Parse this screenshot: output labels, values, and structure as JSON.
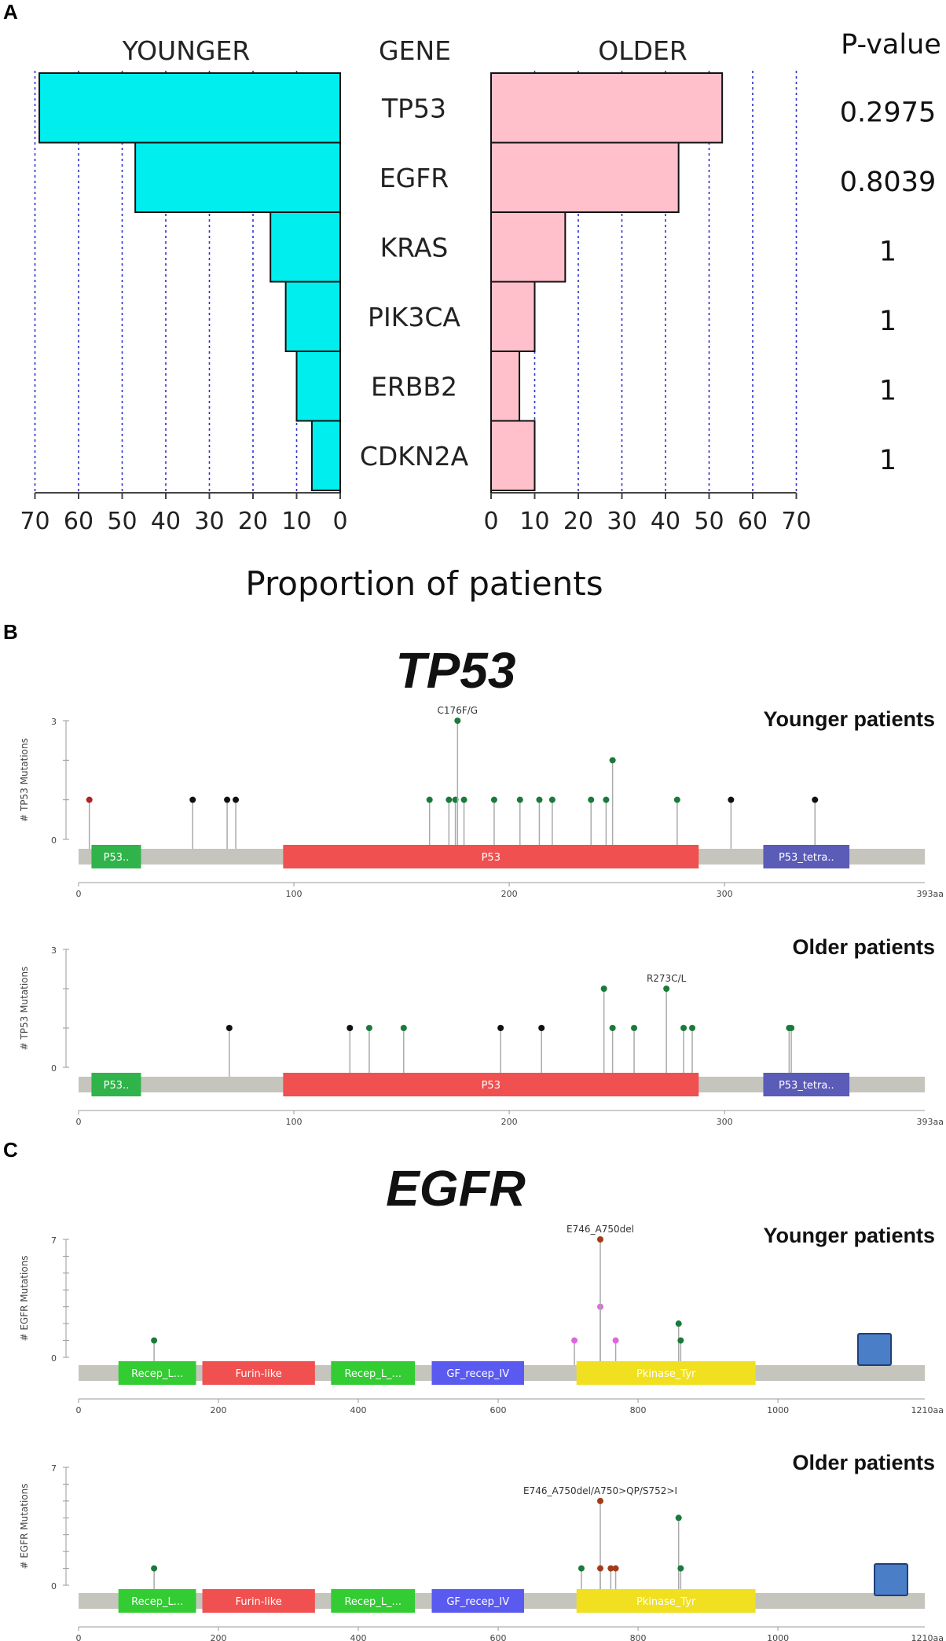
{
  "chart_data": [
    {
      "id": "A",
      "panel_label": "A",
      "type": "bar",
      "orientation": "horizontal-butterfly",
      "left_header": "YOUNGER",
      "center_header": "GENE",
      "right_header": "OLDER",
      "pvalue_header": "P-value",
      "xlabel": "Proportion of patients",
      "xlim": [
        0,
        70
      ],
      "ticks": [
        "0",
        "10",
        "20",
        "30",
        "40",
        "50",
        "60",
        "70"
      ],
      "genes": [
        {
          "gene": "TP53",
          "younger": 69,
          "older": 53,
          "pvalue": "0.2975"
        },
        {
          "gene": "EGFR",
          "younger": 47,
          "older": 43,
          "pvalue": "0.8039"
        },
        {
          "gene": "KRAS",
          "younger": 16,
          "older": 17,
          "pvalue": "1"
        },
        {
          "gene": "PIK3CA",
          "younger": 12.5,
          "older": 10,
          "pvalue": "1"
        },
        {
          "gene": "ERBB2",
          "younger": 10,
          "older": 6.5,
          "pvalue": "1"
        },
        {
          "gene": "CDKN2A",
          "younger": 6.5,
          "older": 10,
          "pvalue": "1"
        }
      ],
      "colors": {
        "younger": "#00eeee",
        "older": "#ffc0cb",
        "grid": "#2d2dcc"
      }
    },
    {
      "id": "B",
      "panel_label": "B",
      "type": "scatter",
      "subtype": "lollipop",
      "gene_title": "TP53",
      "protein_length": 393,
      "length_label": "393aa",
      "ymax": 3,
      "ylabel": "# TP53 Mutations",
      "xticks": [
        "0",
        "100",
        "200",
        "300"
      ],
      "domains": [
        {
          "name": "P53..",
          "start": 6,
          "end": 29,
          "color": "#2fb34a"
        },
        {
          "name": "P53",
          "start": 95,
          "end": 288,
          "color": "#f05050"
        },
        {
          "name": "P53_tetra..",
          "start": 318,
          "end": 358,
          "color": "#5b5bb8"
        }
      ],
      "tracks": [
        {
          "cohort": "Younger patients",
          "label": {
            "text": "C176F/G",
            "pos": 176
          },
          "mutations": [
            {
              "pos": 5,
              "count": 1,
              "color": "#b22222"
            },
            {
              "pos": 53,
              "count": 1,
              "color": "#111111"
            },
            {
              "pos": 69,
              "count": 1,
              "color": "#111111"
            },
            {
              "pos": 73,
              "count": 1,
              "color": "#111111"
            },
            {
              "pos": 163,
              "count": 1,
              "color": "#1a7a3a"
            },
            {
              "pos": 172,
              "count": 1,
              "color": "#1a7a3a"
            },
            {
              "pos": 175,
              "count": 1,
              "color": "#1a7a3a"
            },
            {
              "pos": 176,
              "count": 3,
              "color": "#1a7a3a"
            },
            {
              "pos": 179,
              "count": 1,
              "color": "#1a7a3a"
            },
            {
              "pos": 193,
              "count": 1,
              "color": "#1a7a3a"
            },
            {
              "pos": 205,
              "count": 1,
              "color": "#1a7a3a"
            },
            {
              "pos": 214,
              "count": 1,
              "color": "#1a7a3a"
            },
            {
              "pos": 220,
              "count": 1,
              "color": "#1a7a3a"
            },
            {
              "pos": 238,
              "count": 1,
              "color": "#1a7a3a"
            },
            {
              "pos": 245,
              "count": 1,
              "color": "#1a7a3a"
            },
            {
              "pos": 248,
              "count": 2,
              "color": "#1a7a3a"
            },
            {
              "pos": 278,
              "count": 1,
              "color": "#1a7a3a"
            },
            {
              "pos": 303,
              "count": 1,
              "color": "#111111"
            },
            {
              "pos": 342,
              "count": 1,
              "color": "#111111"
            }
          ]
        },
        {
          "cohort": "Older patients",
          "label": {
            "text": "R273C/L",
            "pos": 273
          },
          "mutations": [
            {
              "pos": 70,
              "count": 1,
              "color": "#111111"
            },
            {
              "pos": 126,
              "count": 1,
              "color": "#111111"
            },
            {
              "pos": 135,
              "count": 1,
              "color": "#1a7a3a"
            },
            {
              "pos": 151,
              "count": 1,
              "color": "#1a7a3a"
            },
            {
              "pos": 196,
              "count": 1,
              "color": "#111111"
            },
            {
              "pos": 215,
              "count": 1,
              "color": "#111111"
            },
            {
              "pos": 244,
              "count": 2,
              "color": "#1a7a3a"
            },
            {
              "pos": 248,
              "count": 1,
              "color": "#1a7a3a"
            },
            {
              "pos": 258,
              "count": 1,
              "color": "#1a7a3a"
            },
            {
              "pos": 273,
              "count": 2,
              "color": "#1a7a3a"
            },
            {
              "pos": 281,
              "count": 1,
              "color": "#1a7a3a"
            },
            {
              "pos": 285,
              "count": 1,
              "color": "#1a7a3a"
            },
            {
              "pos": 330,
              "count": 1,
              "color": "#1a7a3a"
            },
            {
              "pos": 331,
              "count": 1,
              "color": "#1a7a3a"
            }
          ]
        }
      ]
    },
    {
      "id": "C",
      "panel_label": "C",
      "type": "scatter",
      "subtype": "lollipop",
      "gene_title": "EGFR",
      "protein_length": 1210,
      "length_label": "1210aa",
      "ymax": 7,
      "ylabel": "# EGFR Mutations",
      "xticks": [
        "0",
        "200",
        "400",
        "600",
        "800",
        "1000"
      ],
      "domains": [
        {
          "name": "Recep_L...",
          "start": 57,
          "end": 168,
          "color": "#33cc33"
        },
        {
          "name": "Furin-like",
          "start": 177,
          "end": 338,
          "color": "#f05050"
        },
        {
          "name": "Recep_L_...",
          "start": 361,
          "end": 481,
          "color": "#33cc33"
        },
        {
          "name": "GF_recep_IV",
          "start": 505,
          "end": 637,
          "color": "#5a5af0"
        },
        {
          "name": "Pkinase_Tyr",
          "start": 712,
          "end": 968,
          "color": "#f0e020"
        }
      ],
      "tracks": [
        {
          "cohort": "Younger patients",
          "label": {
            "text": "E746_A750del",
            "pos": 746
          },
          "mutations": [
            {
              "pos": 108,
              "count": 1,
              "color": "#1a7a3a"
            },
            {
              "pos": 709,
              "count": 1,
              "color": "#dd66dd"
            },
            {
              "pos": 746,
              "count": 3,
              "color": "#dd66dd"
            },
            {
              "pos": 746,
              "count": 7,
              "color": "#a33c1a"
            },
            {
              "pos": 768,
              "count": 1,
              "color": "#dd66dd"
            },
            {
              "pos": 858,
              "count": 2,
              "color": "#1a7a3a"
            },
            {
              "pos": 861,
              "count": 1,
              "color": "#1a7a3a"
            }
          ]
        },
        {
          "cohort": "Older patients",
          "label": {
            "text": "E746_A750del/A750>QP/S752>I",
            "pos": 746
          },
          "mutations": [
            {
              "pos": 108,
              "count": 1,
              "color": "#1a7a3a"
            },
            {
              "pos": 719,
              "count": 1,
              "color": "#1a7a3a"
            },
            {
              "pos": 746,
              "count": 5,
              "color": "#a33c1a"
            },
            {
              "pos": 746,
              "count": 1,
              "color": "#a33c1a"
            },
            {
              "pos": 761,
              "count": 1,
              "color": "#a33c1a"
            },
            {
              "pos": 768,
              "count": 1,
              "color": "#a33c1a"
            },
            {
              "pos": 858,
              "count": 4,
              "color": "#1a7a3a"
            },
            {
              "pos": 861,
              "count": 1,
              "color": "#1a7a3a"
            }
          ]
        }
      ]
    }
  ]
}
